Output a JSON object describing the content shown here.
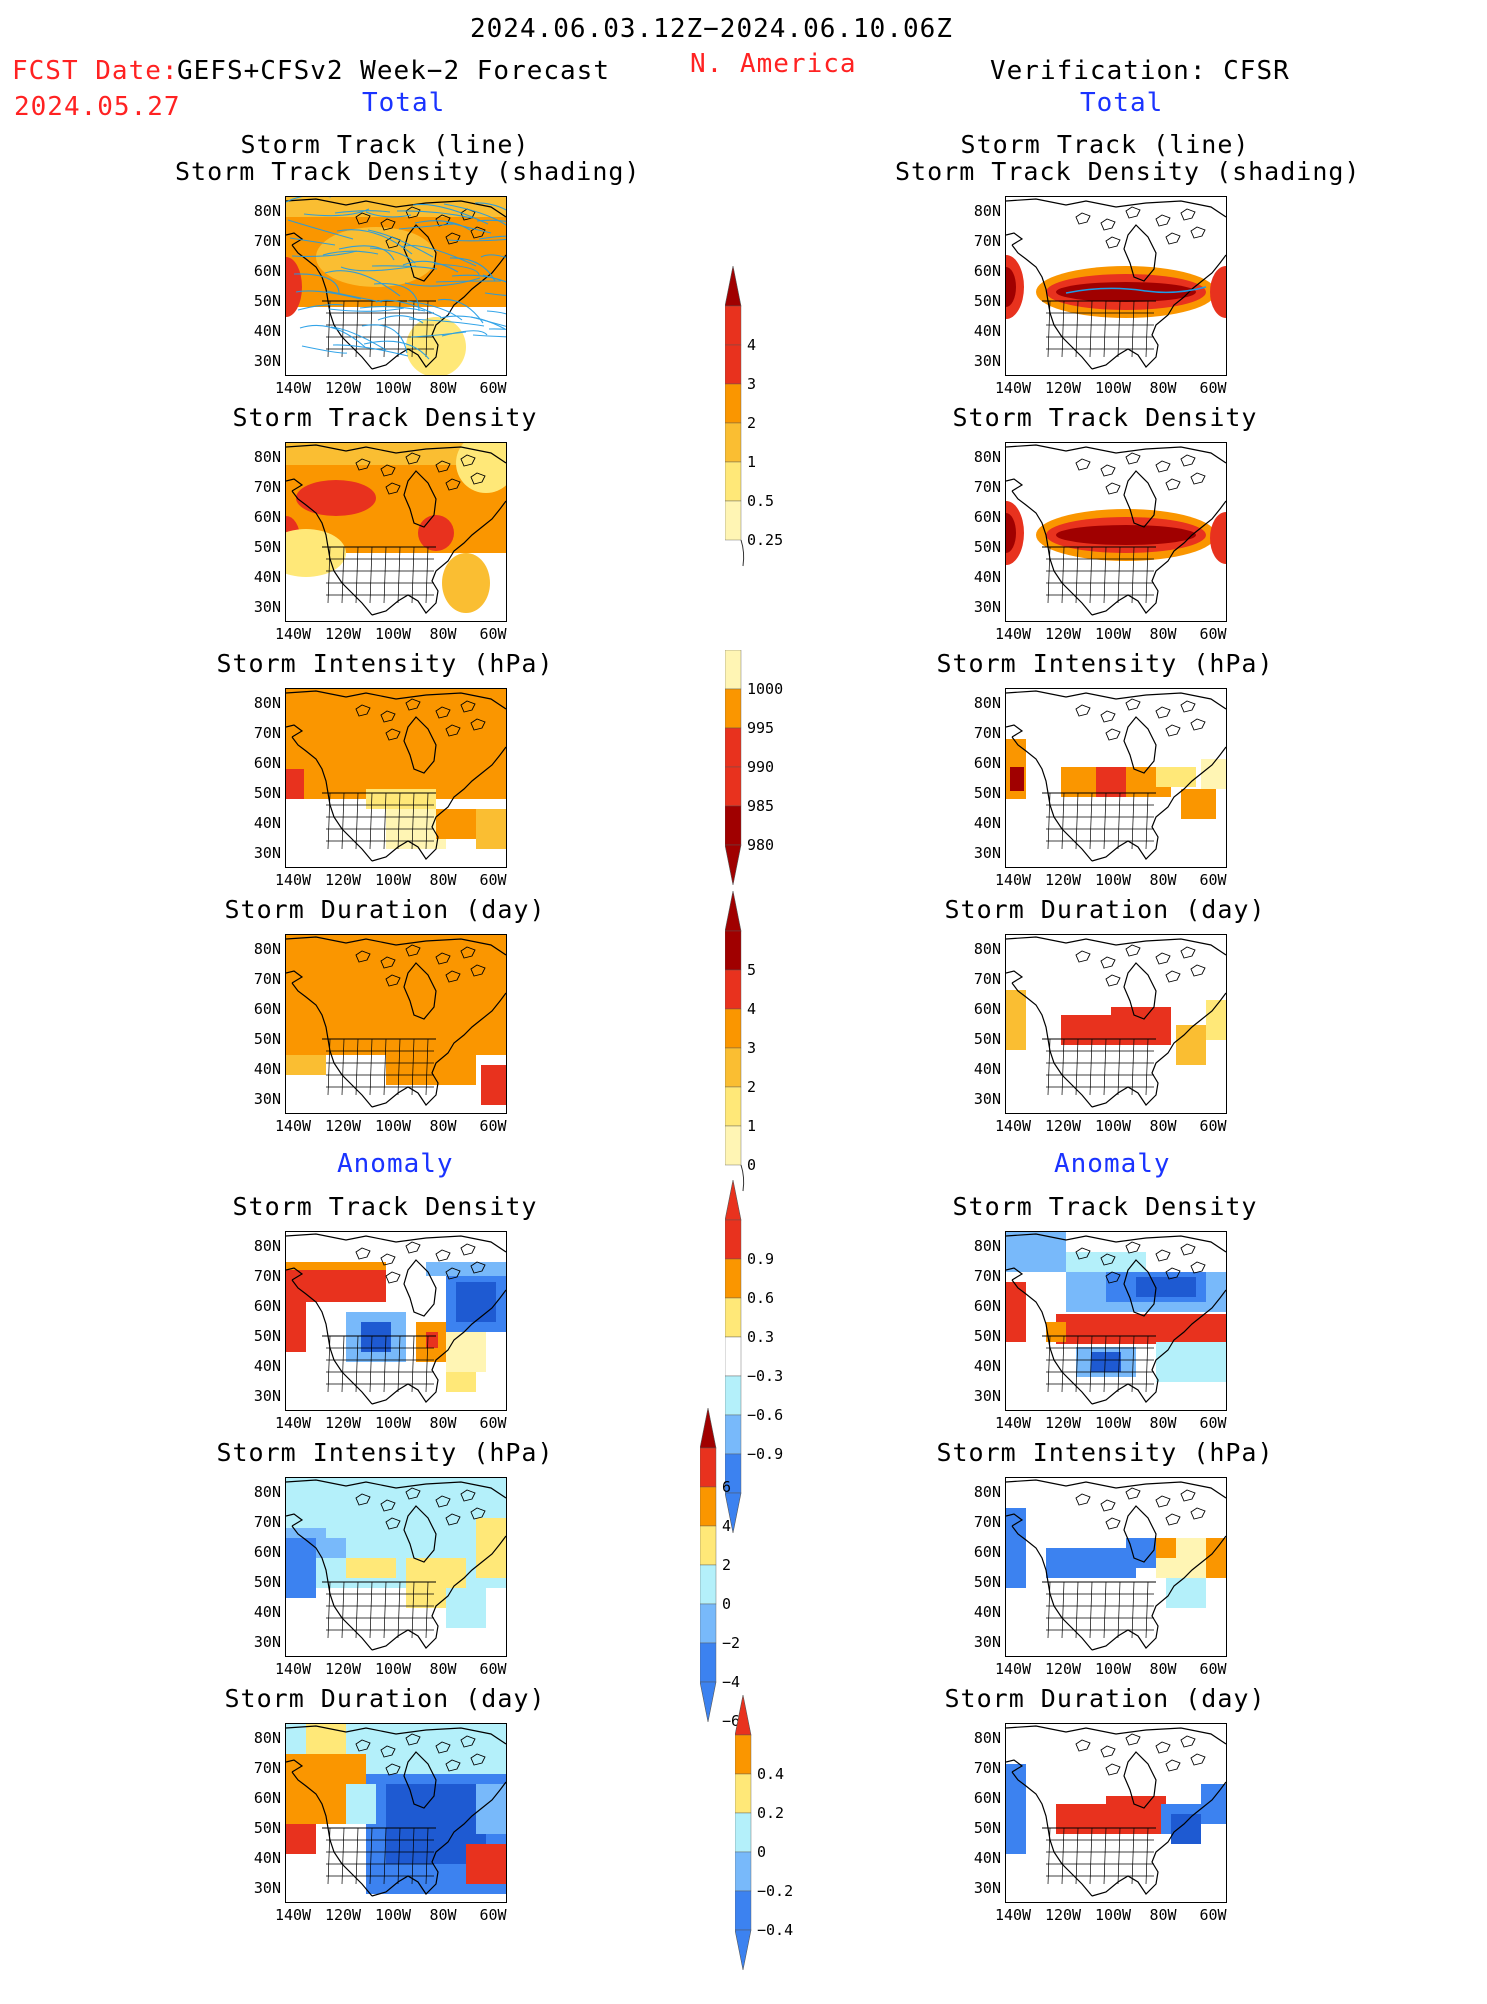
{
  "header": {
    "date_range": "2024.06.03.12Z−2024.06.10.06Z",
    "fcst_label": "FCST Date:",
    "fcst_product": "GEFS+CFSv2 Week−2 Forecast",
    "fcst_date": "2024.05.27",
    "region": "N. America",
    "verification": "Verification: CFSR"
  },
  "sections": {
    "total": "Total",
    "anomaly": "Anomaly"
  },
  "panel_titles": {
    "track_line": "Storm Track (line)",
    "track_shading": "Storm Track Density (shading)",
    "density": "Storm Track Density",
    "intensity": "Storm Intensity (hPa)",
    "duration": "Storm Duration (day)"
  },
  "lat_labels": [
    "80N",
    "70N",
    "60N",
    "50N",
    "40N",
    "30N"
  ],
  "lon_labels": [
    "140W",
    "120W",
    "100W",
    "80W",
    "60W"
  ],
  "colorbars": {
    "density_total": [
      "4",
      "3",
      "2",
      "1",
      "0.5",
      "0.25"
    ],
    "intensity_total": [
      "1000",
      "995",
      "990",
      "985",
      "980"
    ],
    "duration_total": [
      "5",
      "4",
      "3",
      "2",
      "1",
      "0"
    ],
    "density_anom": [
      "0.9",
      "0.6",
      "0.3",
      "−0.3",
      "−0.6",
      "−0.9"
    ],
    "intensity_anom": [
      "6",
      "4",
      "2",
      "0",
      "−2",
      "−4",
      "−6"
    ],
    "duration_anom": [
      "0.4",
      "0.2",
      "0",
      "−0.2",
      "−0.4"
    ]
  },
  "colors": {
    "dark_red": "#a00000",
    "red": "#e8321e",
    "orange": "#fa9600",
    "light_orange": "#fabe32",
    "yellow": "#ffe878",
    "pale_yellow": "#fff5b4",
    "pale_blue": "#b4f0fa",
    "light_blue": "#78b9fa",
    "blue": "#3c82f0",
    "dark_blue": "#1e5ad2",
    "track_line": "#1e9be6"
  }
}
